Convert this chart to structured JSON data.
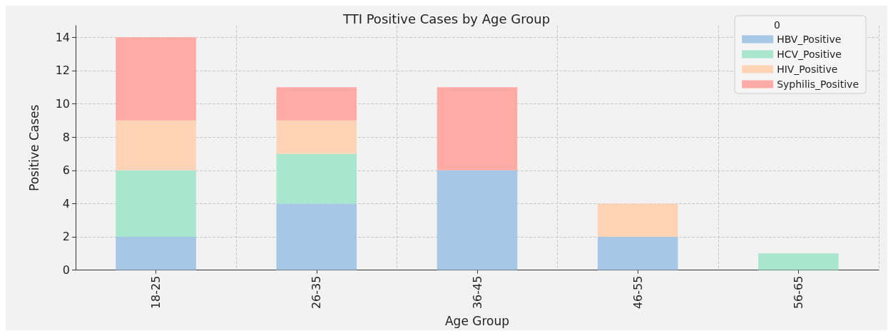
{
  "chart_data": {
    "type": "bar",
    "title": "TTI Positive Cases by Age Group",
    "xlabel": "Age Group",
    "ylabel": "Positive Cases",
    "legend_title": "0",
    "categories": [
      "18-25",
      "26-35",
      "36-45",
      "46-55",
      "56-65"
    ],
    "series": [
      {
        "name": "HBV_Positive",
        "color": "#a7c7e7",
        "values": [
          2,
          4,
          6,
          2,
          0
        ]
      },
      {
        "name": "HCV_Positive",
        "color": "#a8e6cf",
        "values": [
          4,
          3,
          0,
          0,
          1
        ]
      },
      {
        "name": "HIV_Positive",
        "color": "#ffd3b6",
        "values": [
          3,
          2,
          0,
          2,
          0
        ]
      },
      {
        "name": "Syphilis_Positive",
        "color": "#ffaaa5",
        "values": [
          5,
          2,
          5,
          0,
          0
        ]
      }
    ],
    "stacked": true,
    "ylim": [
      0,
      14.7
    ],
    "yticks": [
      0,
      2,
      4,
      6,
      8,
      10,
      12,
      14
    ],
    "grid": true,
    "legend": "top right"
  }
}
